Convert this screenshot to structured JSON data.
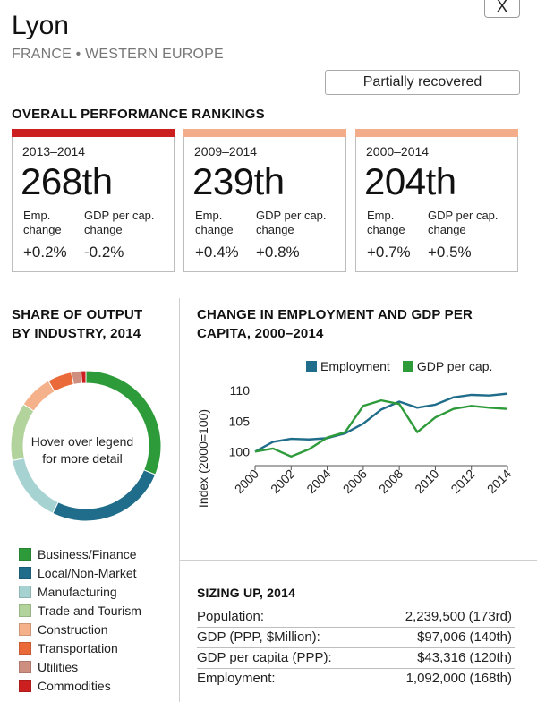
{
  "header": {
    "close_label": "X",
    "city": "Lyon",
    "region": "FRANCE • WESTERN EUROPE",
    "status": "Partially recovered"
  },
  "rankings": {
    "title": "OVERALL PERFORMANCE RANKINGS",
    "emp_label_line1": "Emp.",
    "emp_label_line2": "change",
    "gdp_label_line1": "GDP per cap.",
    "gdp_label_line2": "change",
    "cards": [
      {
        "period": "2013–2014",
        "rank": "268th",
        "emp_change": "+0.2%",
        "gdp_change": "-0.2%",
        "color": "#cc1f1f"
      },
      {
        "period": "2009–2014",
        "rank": "239th",
        "emp_change": "+0.4%",
        "gdp_change": "+0.8%",
        "color": "#f4ad8a"
      },
      {
        "period": "2000–2014",
        "rank": "204th",
        "emp_change": "+0.7%",
        "gdp_change": "+0.5%",
        "color": "#f4ad8a"
      }
    ]
  },
  "share": {
    "title_line1": "SHARE OF OUTPUT",
    "title_line2": "BY INDUSTRY, 2014",
    "hover_line1": "Hover over legend",
    "hover_line2": "for more detail",
    "legend": [
      {
        "label": "Business/Finance",
        "color": "#2e9b3a"
      },
      {
        "label": "Local/Non-Market",
        "color": "#1f6d8a"
      },
      {
        "label": "Manufacturing",
        "color": "#a6d3d2"
      },
      {
        "label": "Trade and Tourism",
        "color": "#b3d39c"
      },
      {
        "label": "Construction",
        "color": "#f4b18a"
      },
      {
        "label": "Transportation",
        "color": "#ea6a3a"
      },
      {
        "label": "Utilities",
        "color": "#cf8f80"
      },
      {
        "label": "Commodities",
        "color": "#cc1f1f"
      }
    ]
  },
  "change_chart": {
    "title_line1": "CHANGE IN EMPLOYMENT AND GDP PER",
    "title_line2": "CAPITA, 2000–2014"
  },
  "chart_data": {
    "type": "line",
    "title": "CHANGE IN EMPLOYMENT AND GDP PER CAPITA, 2000–2014",
    "xlabel": "",
    "ylabel": "Index (2000=100)",
    "x": [
      2000,
      2001,
      2002,
      2003,
      2004,
      2005,
      2006,
      2007,
      2008,
      2009,
      2010,
      2011,
      2012,
      2013,
      2014
    ],
    "xticks": [
      "2000",
      "2002",
      "2004",
      "2006",
      "2008",
      "2010",
      "2012",
      "2014"
    ],
    "yticks": [
      "100",
      "105",
      "110"
    ],
    "ylim": [
      98,
      111.5
    ],
    "legend_position": "top",
    "series": [
      {
        "name": "Employment",
        "color": "#1f6d8a",
        "values": [
          100,
          101.6,
          102.1,
          102.0,
          102.2,
          103.0,
          104.6,
          106.9,
          108.2,
          107.2,
          107.7,
          108.9,
          109.3,
          109.2,
          109.5
        ]
      },
      {
        "name": "GDP per cap.",
        "color": "#2e9b3a",
        "values": [
          100,
          100.5,
          99.2,
          100.4,
          102.3,
          103.2,
          107.5,
          108.4,
          107.8,
          103.2,
          105.6,
          107.0,
          107.5,
          107.2,
          107.0
        ]
      }
    ],
    "donut": {
      "type": "pie",
      "categories": [
        "Business/Finance",
        "Local/Non-Market",
        "Manufacturing",
        "Trade and Tourism",
        "Construction",
        "Transportation",
        "Utilities",
        "Commodities"
      ],
      "values": [
        30,
        25,
        14,
        12,
        7,
        5,
        2,
        1
      ]
    }
  },
  "sizing": {
    "title": "SIZING UP, 2014",
    "rows": [
      {
        "label": "Population:",
        "value": "2,239,500 (173rd)"
      },
      {
        "label": "GDP (PPP, $Million):",
        "value": "$97,006 (140th)"
      },
      {
        "label": "GDP per capita (PPP):",
        "value": "$43,316 (120th)"
      },
      {
        "label": "Employment:",
        "value": "1,092,000 (168th)"
      }
    ]
  }
}
